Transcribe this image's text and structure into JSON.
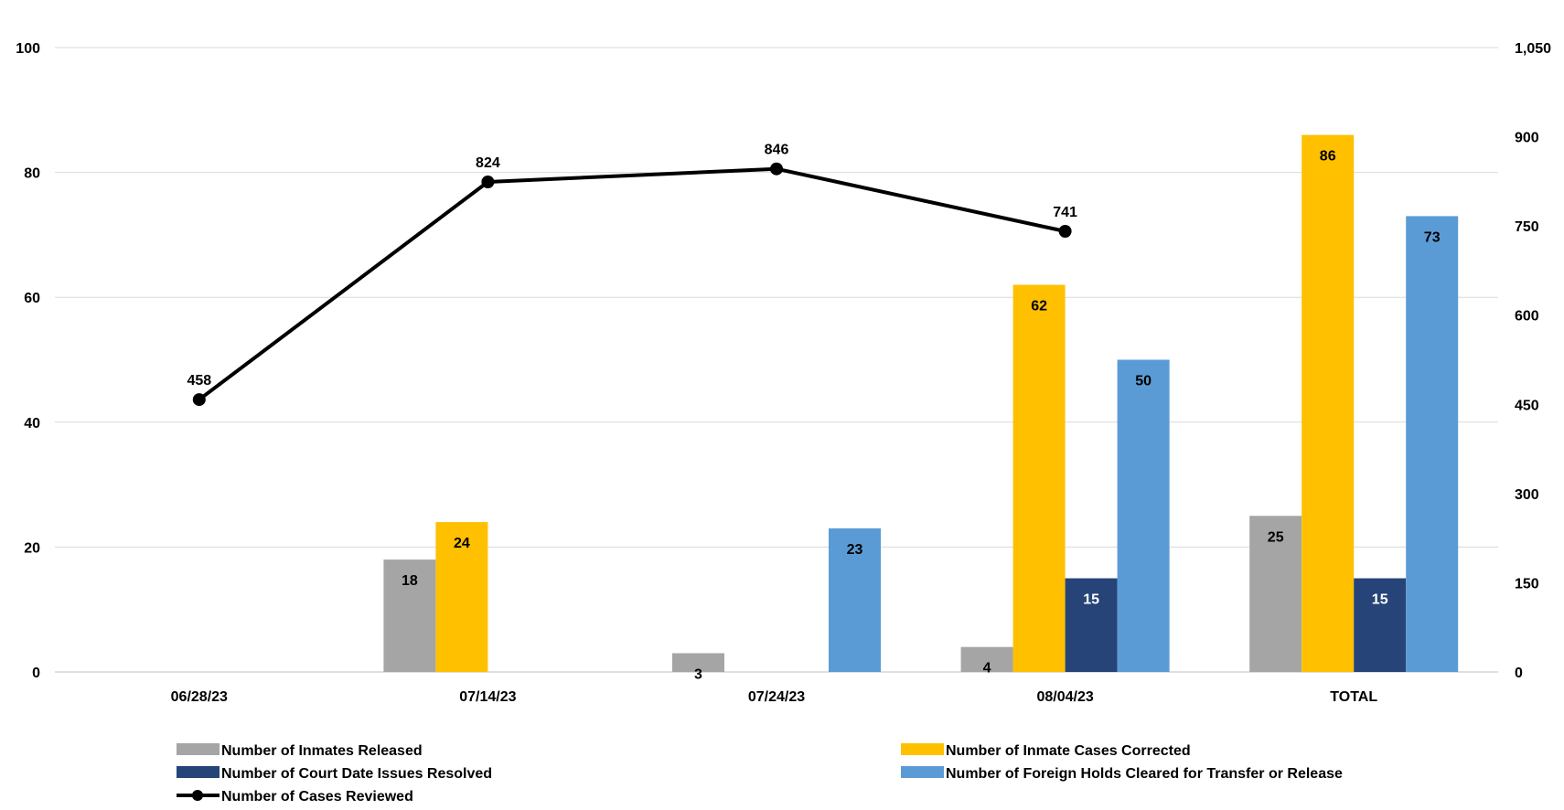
{
  "chart_data": {
    "type": "bar",
    "categories": [
      "06/28/23",
      "07/14/23",
      "07/24/23",
      "08/04/23",
      "TOTAL"
    ],
    "series": [
      {
        "name": "Number of Inmates Released",
        "type": "bar",
        "axis": "left",
        "color": "#a5a5a5",
        "label_color": "#000000",
        "values": [
          null,
          18,
          3,
          4,
          25
        ]
      },
      {
        "name": "Number of Inmate Cases Corrected",
        "type": "bar",
        "axis": "left",
        "color": "#ffc000",
        "label_color": "#000000",
        "values": [
          null,
          24,
          null,
          62,
          86
        ]
      },
      {
        "name": "Number of Court Date Issues Resolved",
        "type": "bar",
        "axis": "left",
        "color": "#264478",
        "label_color": "#ffffff",
        "values": [
          null,
          null,
          null,
          15,
          15
        ]
      },
      {
        "name": "Number of Foreign Holds Cleared for Transfer or Release",
        "type": "bar",
        "axis": "left",
        "color": "#5b9bd5",
        "label_color": "#000000",
        "values": [
          null,
          null,
          23,
          50,
          73
        ]
      },
      {
        "name": "Number of Cases Reviewed",
        "type": "line",
        "axis": "right",
        "color": "#000000",
        "label_color": "#000000",
        "values": [
          458,
          824,
          846,
          741,
          null
        ]
      }
    ],
    "y_left": {
      "min": 0,
      "max": 100,
      "ticks": [
        0,
        20,
        40,
        60,
        80,
        100
      ],
      "tick_labels": [
        "0",
        "20",
        "40",
        "60",
        "80",
        "100"
      ]
    },
    "y_right": {
      "min": 0,
      "max": 1050,
      "ticks": [
        0,
        150,
        300,
        450,
        600,
        750,
        900,
        1050
      ],
      "tick_labels": [
        "0",
        "150",
        "300",
        "450",
        "600",
        "750",
        "900",
        "1,050"
      ]
    },
    "grid": true,
    "legend_position": "bottom",
    "title": "",
    "xlabel": "",
    "ylabel": ""
  }
}
